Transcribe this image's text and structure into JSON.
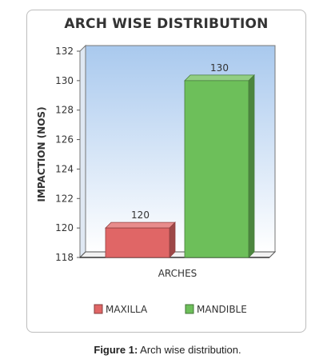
{
  "chart_data": {
    "type": "bar",
    "title": "ARCH WISE DISTRIBUTION",
    "xlabel": "ARCHES",
    "ylabel": "IMPACTION (NOS)",
    "ylim": [
      118,
      132
    ],
    "yticks": [
      118,
      120,
      122,
      124,
      126,
      128,
      130,
      132
    ],
    "grid": false,
    "legend_position": "bottom",
    "categories": [
      "MAXILLA",
      "MANDIBLE"
    ],
    "values": [
      120,
      130
    ],
    "colors": [
      "#e06666",
      "#6dbf5a"
    ]
  },
  "caption": {
    "label": "Figure 1:",
    "text": " Arch wise distribution."
  }
}
